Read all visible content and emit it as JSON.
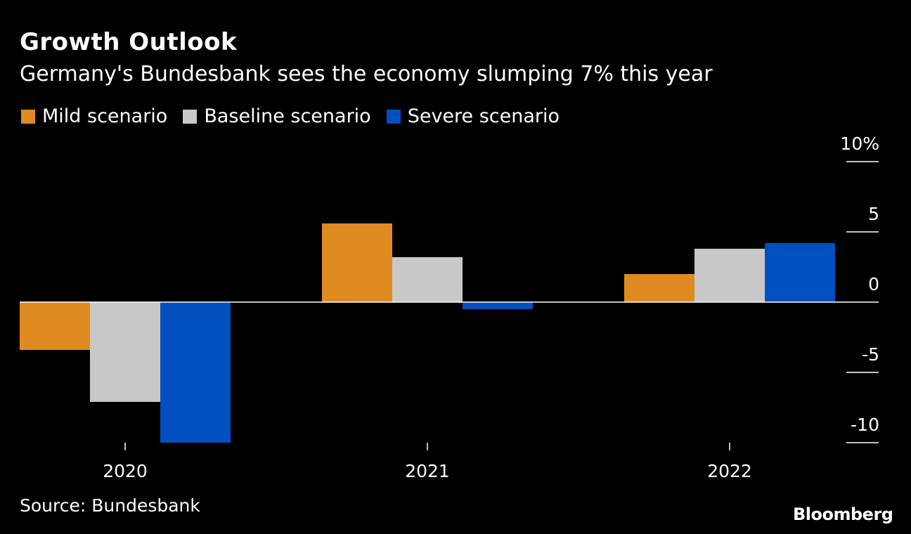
{
  "header": {
    "title": "Growth Outlook",
    "subtitle": "Germany's Bundesbank sees the economy slumping 7% this year"
  },
  "legend": {
    "items": [
      {
        "label": "Mild scenario",
        "color": "#e08a22"
      },
      {
        "label": "Baseline scenario",
        "color": "#c8c8c8"
      },
      {
        "label": "Severe scenario",
        "color": "#0050c0"
      }
    ]
  },
  "footer": {
    "source": "Source: Bundesbank",
    "brand": "Bloomberg"
  },
  "chart_data": {
    "type": "bar",
    "categories": [
      "2020",
      "2021",
      "2022"
    ],
    "series": [
      {
        "name": "Mild scenario",
        "color": "#e08a22",
        "values": [
          -3.4,
          5.6,
          2.0
        ]
      },
      {
        "name": "Baseline scenario",
        "color": "#c8c8c8",
        "values": [
          -7.1,
          3.2,
          3.8
        ]
      },
      {
        "name": "Severe scenario",
        "color": "#0050c0",
        "values": [
          -10.0,
          -0.5,
          4.2
        ]
      }
    ],
    "ylim": [
      -10,
      10
    ],
    "yticks": [
      10,
      5,
      0,
      -5,
      -10
    ],
    "ytick_labels": [
      "10%",
      "5",
      "0",
      "-5",
      "-10"
    ],
    "axis_position": "right",
    "legend_position": "top-left",
    "grid": false
  }
}
